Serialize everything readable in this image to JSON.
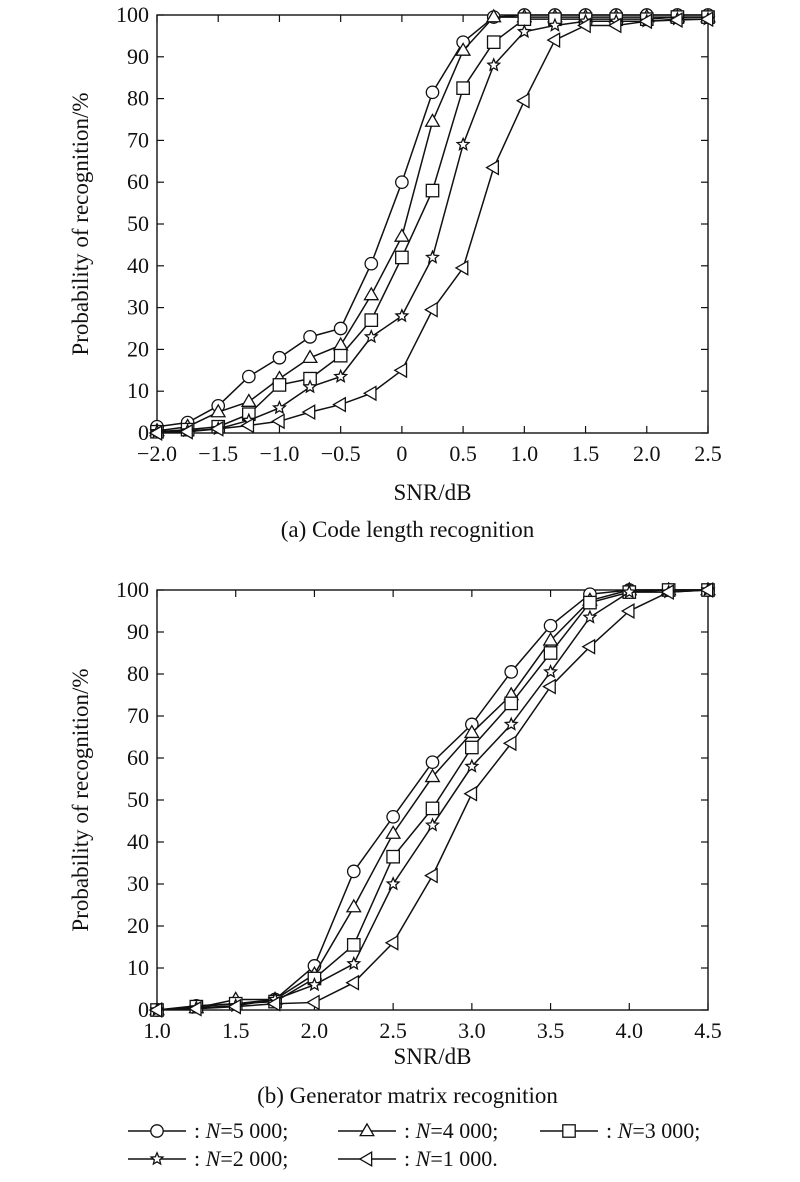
{
  "chart_data": [
    {
      "type": "line",
      "caption": "(a) Code length recognition",
      "xlabel": "SNR/dB",
      "ylabel": "Probability of recognition/%",
      "xlim": [
        -2.0,
        2.5
      ],
      "ylim": [
        0,
        100
      ],
      "xticks": [
        -2.0,
        -1.5,
        -1.0,
        -0.5,
        0,
        0.5,
        1.0,
        1.5,
        2.0,
        2.5
      ],
      "xtick_labels": [
        "−2.0",
        "−1.5",
        "−1.0",
        "−0.5",
        "0",
        "0.5",
        "1.0",
        "1.5",
        "2.0",
        "2.5"
      ],
      "yticks": [
        0,
        10,
        20,
        30,
        40,
        50,
        60,
        70,
        80,
        90,
        100
      ],
      "ytick_labels": [
        "0",
        "10",
        "20",
        "30",
        "40",
        "50",
        "60",
        "70",
        "80",
        "90",
        "100"
      ],
      "grid": false,
      "x": [
        -2.0,
        -1.75,
        -1.5,
        -1.25,
        -1.0,
        -0.75,
        -0.5,
        -0.25,
        0,
        0.25,
        0.5,
        0.75,
        1.0,
        1.25,
        1.5,
        1.75,
        2.0,
        2.25,
        2.5
      ],
      "series": [
        {
          "name": "N=5 000",
          "marker": "circle",
          "values": [
            1.5,
            2.5,
            6.5,
            13.5,
            18,
            23,
            25,
            40.5,
            60,
            81.5,
            93.5,
            99.5,
            100,
            100,
            100,
            100,
            100,
            100,
            100
          ]
        },
        {
          "name": "N=4 000",
          "marker": "triangle-up",
          "values": [
            0.5,
            1.5,
            5,
            7.5,
            13,
            18,
            21,
            33,
            47,
            74.5,
            91.5,
            99.5,
            99.5,
            99.5,
            99.5,
            99.5,
            99.5,
            99.5,
            99.5
          ]
        },
        {
          "name": "N=3 000",
          "marker": "square",
          "values": [
            0.3,
            0.8,
            1.5,
            4.5,
            11.5,
            13,
            18.5,
            27,
            42,
            58,
            82.5,
            93.5,
            99,
            99,
            99,
            99,
            99,
            99.5,
            99.5
          ]
        },
        {
          "name": "N=2 000",
          "marker": "star",
          "values": [
            0.3,
            0.5,
            1,
            3,
            6,
            11,
            13.5,
            23,
            28,
            42,
            69,
            88,
            96,
            97.5,
            98.5,
            98.5,
            98.5,
            99,
            99
          ]
        },
        {
          "name": "N=1 000",
          "marker": "triangle-left",
          "values": [
            0,
            0.3,
            1,
            1.8,
            2.8,
            5,
            6.8,
            9.5,
            15,
            29.5,
            39.5,
            63.5,
            79.5,
            94,
            97.5,
            97.5,
            98.5,
            98.8,
            99
          ]
        }
      ]
    },
    {
      "type": "line",
      "caption": "(b) Generator matrix recognition",
      "xlabel": "SNR/dB",
      "ylabel": "Probability of recognition/%",
      "xlim": [
        1.0,
        4.5
      ],
      "ylim": [
        0,
        100
      ],
      "xticks": [
        1.0,
        1.5,
        2.0,
        2.5,
        3.0,
        3.5,
        4.0,
        4.5
      ],
      "xtick_labels": [
        "1.0",
        "1.5",
        "2.0",
        "2.5",
        "3.0",
        "3.5",
        "4.0",
        "4.5"
      ],
      "yticks": [
        0,
        10,
        20,
        30,
        40,
        50,
        60,
        70,
        80,
        90,
        100
      ],
      "ytick_labels": [
        "0",
        "10",
        "20",
        "30",
        "40",
        "50",
        "60",
        "70",
        "80",
        "90",
        "100"
      ],
      "grid": false,
      "x": [
        1.0,
        1.25,
        1.5,
        1.75,
        2.0,
        2.25,
        2.5,
        2.75,
        3.0,
        3.25,
        3.5,
        3.75,
        4.0,
        4.25,
        4.5
      ],
      "series": [
        {
          "name": "N=5 000",
          "marker": "circle",
          "values": [
            0,
            1,
            1.5,
            2.5,
            10.5,
            33,
            46,
            59,
            68,
            80.5,
            91.5,
            99,
            100,
            100,
            100
          ]
        },
        {
          "name": "N=4 000",
          "marker": "triangle-up",
          "values": [
            0,
            0.5,
            2.5,
            2.5,
            8.5,
            24.5,
            42,
            55.5,
            66,
            75,
            88,
            97.5,
            100,
            100,
            100
          ]
        },
        {
          "name": "N=3 000",
          "marker": "square",
          "values": [
            0,
            0.8,
            1.5,
            2,
            7.5,
            15.5,
            36.5,
            48,
            62.5,
            73,
            85,
            97,
            99.5,
            100,
            100
          ]
        },
        {
          "name": "N=2 000",
          "marker": "star",
          "values": [
            0,
            0.5,
            1,
            2.5,
            6,
            11,
            30,
            44,
            58,
            68,
            80.5,
            93.5,
            99.5,
            99.5,
            100
          ]
        },
        {
          "name": "N=1 000",
          "marker": "triangle-left",
          "values": [
            0,
            0.3,
            0.8,
            1.5,
            1.8,
            6.5,
            16,
            32,
            51.5,
            63.5,
            77,
            86.5,
            95,
            99.5,
            100
          ]
        }
      ]
    }
  ],
  "legend": {
    "rows": [
      [
        {
          "prefix": ": ",
          "var": "N",
          "value": "=5 000;",
          "marker": "circle"
        },
        {
          "prefix": ": ",
          "var": "N",
          "value": "=4 000;",
          "marker": "triangle-up"
        },
        {
          "prefix": ": ",
          "var": "N",
          "value": "=3 000;",
          "marker": "square"
        }
      ],
      [
        {
          "prefix": ": ",
          "var": "N",
          "value": "=2 000;",
          "marker": "star"
        },
        {
          "prefix": ": ",
          "var": "N",
          "value": "=1 000.",
          "marker": "triangle-left"
        }
      ]
    ]
  }
}
